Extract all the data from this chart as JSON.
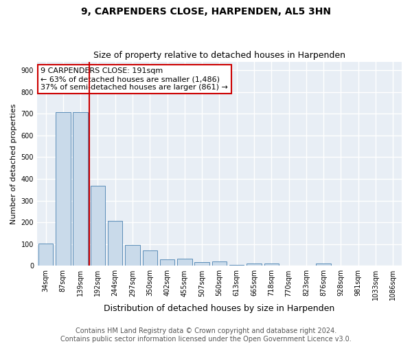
{
  "title": "9, CARPENDERS CLOSE, HARPENDEN, AL5 3HN",
  "subtitle": "Size of property relative to detached houses in Harpenden",
  "xlabel": "Distribution of detached houses by size in Harpenden",
  "ylabel": "Number of detached properties",
  "bar_labels": [
    "34sqm",
    "87sqm",
    "139sqm",
    "192sqm",
    "244sqm",
    "297sqm",
    "350sqm",
    "402sqm",
    "455sqm",
    "507sqm",
    "560sqm",
    "613sqm",
    "665sqm",
    "718sqm",
    "770sqm",
    "823sqm",
    "876sqm",
    "928sqm",
    "981sqm",
    "1033sqm",
    "1086sqm"
  ],
  "bar_values": [
    103,
    707,
    707,
    370,
    207,
    95,
    72,
    30,
    33,
    17,
    20,
    5,
    10,
    10,
    0,
    0,
    10,
    0,
    0,
    0,
    0
  ],
  "bar_color": "#c9daea",
  "bar_edge_color": "#5b8db8",
  "vline_color": "#cc0000",
  "vline_x_index": 3,
  "annotation_text": "9 CARPENDERS CLOSE: 191sqm\n← 63% of detached houses are smaller (1,486)\n37% of semi-detached houses are larger (861) →",
  "annotation_box_color": "#ffffff",
  "annotation_box_edge": "#cc0000",
  "ylim": [
    0,
    940
  ],
  "yticks": [
    0,
    100,
    200,
    300,
    400,
    500,
    600,
    700,
    800,
    900
  ],
  "background_color": "#e8eef5",
  "grid_color": "#ffffff",
  "footer": "Contains HM Land Registry data © Crown copyright and database right 2024.\nContains public sector information licensed under the Open Government Licence v3.0.",
  "title_fontsize": 10,
  "xlabel_fontsize": 9,
  "ylabel_fontsize": 8,
  "tick_fontsize": 7,
  "annotation_fontsize": 8,
  "footer_fontsize": 7
}
